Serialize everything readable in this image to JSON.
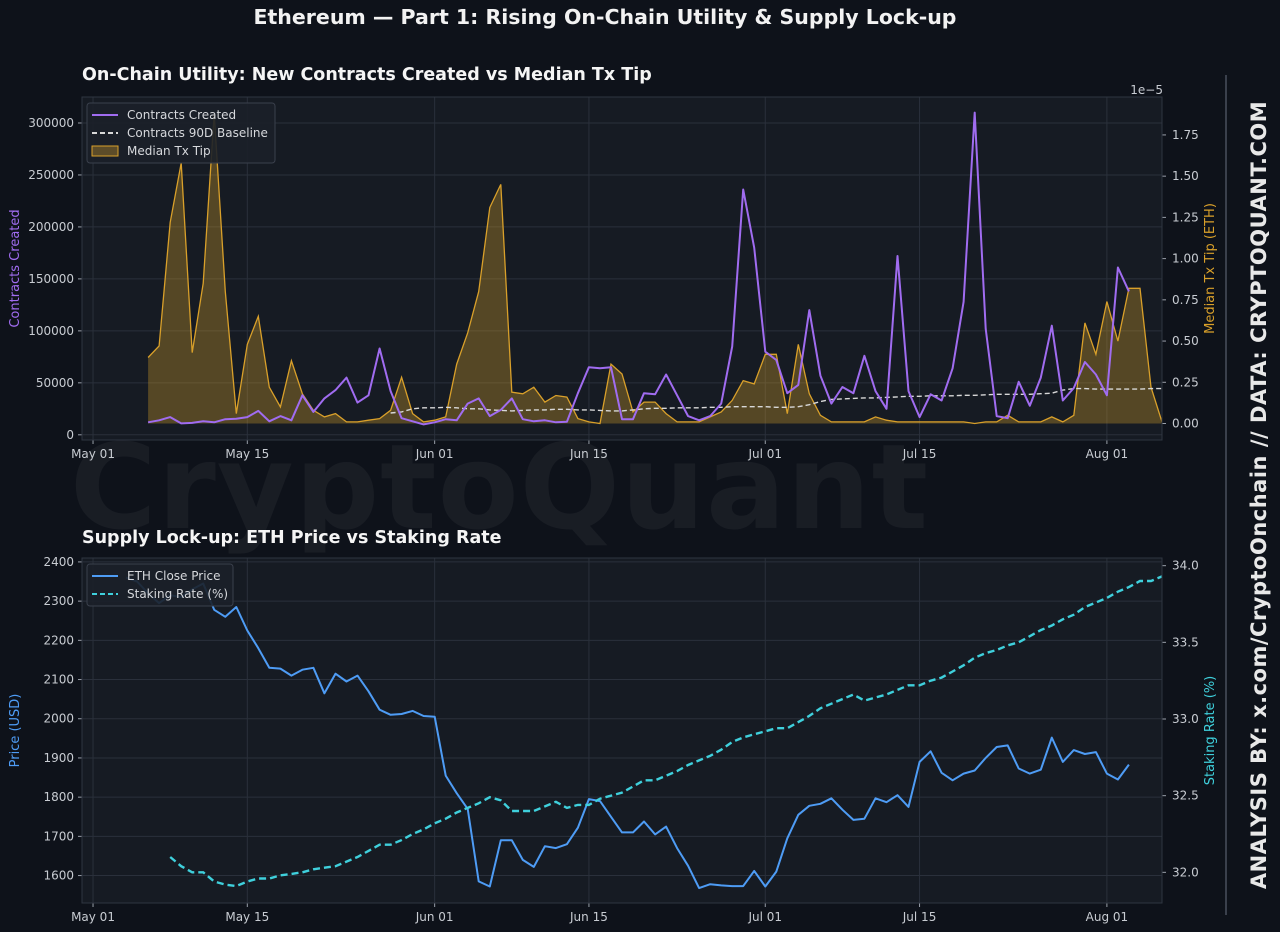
{
  "header": {
    "suptitle": "Ethereum — Part 1: Rising On-Chain Utility & Supply Lock-up",
    "watermark": "CryptoQuant",
    "side_credit": "ANALYSIS BY: x.com/CryptoOnchain   //   DATA: CRYPTOQUANT.COM"
  },
  "colors": {
    "background": "#0e121a",
    "plot_bg": "#161b23",
    "contracts": "#a06cf0",
    "baseline": "#d8d8d8",
    "tip": "#d9a02a",
    "price": "#4e9cf5",
    "staking": "#3fd0dc"
  },
  "chart_data": [
    {
      "type": "line",
      "title": "On-Chain Utility: New Contracts Created vs Median Tx Tip",
      "ylabel": "Contracts Created",
      "ylabel_right": "Median Tx Tip (ETH)",
      "right_axis_offset_label": "1e−5",
      "x_start": "2023-05-06",
      "x_tick_labels": [
        "May 01",
        "May 15",
        "Jun 01",
        "Jun 15",
        "Jul 01",
        "Jul 15",
        "Aug 01"
      ],
      "x_ticks": [
        "2023-05-01",
        "2023-05-15",
        "2023-06-01",
        "2023-06-15",
        "2023-07-01",
        "2023-07-15",
        "2023-08-01"
      ],
      "xlim": [
        "2023-04-30",
        "2023-08-06"
      ],
      "ylim": [
        -5000,
        325000
      ],
      "y_ticks": [
        0,
        50000,
        100000,
        150000,
        200000,
        250000,
        300000
      ],
      "ylim_right": [
        -0.1,
        1.98
      ],
      "y_ticks_right": [
        "0.00",
        "0.25",
        "0.50",
        "0.75",
        "1.00",
        "1.25",
        "1.50",
        "1.75"
      ],
      "legend": "top-left",
      "grid": true,
      "series": [
        {
          "name": "Contracts Created",
          "kind": "line",
          "axis": "left",
          "values": [
            12000,
            14000,
            17000,
            11000,
            11500,
            13000,
            12000,
            15000,
            15500,
            17000,
            23000,
            13000,
            18000,
            14000,
            38000,
            22000,
            35000,
            43000,
            55000,
            31000,
            38000,
            83000,
            42000,
            16000,
            13000,
            10000,
            12000,
            15000,
            14000,
            30000,
            35000,
            18000,
            24000,
            35000,
            15000,
            13000,
            14000,
            12000,
            12500,
            40000,
            65000,
            64000,
            65000,
            15000,
            15000,
            40000,
            39000,
            58000,
            38000,
            18000,
            14000,
            18000,
            30000,
            85000,
            236000,
            180000,
            80000,
            72000,
            40000,
            48000,
            120000,
            57000,
            30000,
            46000,
            40000,
            76000,
            42000,
            25000,
            172000,
            42000,
            17000,
            39000,
            33000,
            64000,
            128000,
            310000,
            102000,
            18000,
            16000,
            51000,
            28000,
            55000,
            105000,
            33000,
            45000,
            70000,
            58000,
            38000,
            161000,
            138000
          ]
        },
        {
          "name": "Contracts 90D Baseline",
          "kind": "dashed-line",
          "axis": "left",
          "start_index": 22,
          "values": [
            21000,
            22000,
            25000,
            26000,
            26000,
            26500,
            26000,
            25000,
            25000,
            24000,
            23500,
            23000,
            23500,
            24000,
            24000,
            24500,
            24500,
            24000,
            24000,
            23500,
            23000,
            23000,
            24000,
            25000,
            25500,
            25500,
            26000,
            26000,
            26000,
            26500,
            26500,
            27000,
            27000,
            27000,
            27000,
            26500,
            26500,
            27000,
            29000,
            32000,
            34000,
            34500,
            35000,
            35500,
            35500,
            36000,
            36500,
            37000,
            37000,
            37500,
            37500,
            37500,
            38000,
            38000,
            38500,
            39000,
            39000,
            39000,
            39000,
            39500,
            40000,
            43000,
            44500,
            44500,
            44000,
            44000,
            44000,
            44000,
            44000,
            44500,
            44500,
            44500,
            44500,
            45000,
            45000,
            45500,
            47000
          ]
        },
        {
          "name": "Median Tx Tip",
          "kind": "filled-area",
          "axis": "right",
          "values": [
            0.4,
            0.47,
            1.22,
            1.58,
            0.43,
            0.85,
            1.88,
            0.8,
            0.06,
            0.48,
            0.65,
            0.22,
            0.1,
            0.38,
            0.18,
            0.08,
            0.04,
            0.06,
            0.01,
            0.01,
            0.02,
            0.03,
            0.08,
            0.28,
            0.06,
            0.01,
            0.02,
            0.04,
            0.36,
            0.55,
            0.8,
            1.31,
            1.45,
            0.19,
            0.18,
            0.22,
            0.13,
            0.17,
            0.16,
            0.03,
            0.01,
            0.0,
            0.36,
            0.3,
            0.07,
            0.13,
            0.13,
            0.06,
            0.01,
            0.01,
            0.01,
            0.04,
            0.07,
            0.14,
            0.26,
            0.24,
            0.42,
            0.42,
            0.06,
            0.48,
            0.18,
            0.05,
            0.01,
            0.01,
            0.01,
            0.01,
            0.04,
            0.02,
            0.01,
            0.01,
            0.01,
            0.01,
            0.01,
            0.01,
            0.01,
            0.0,
            0.01,
            0.01,
            0.05,
            0.01,
            0.01,
            0.01,
            0.04,
            0.01,
            0.05,
            0.61,
            0.42,
            0.74,
            0.5,
            0.82,
            0.82,
            0.22,
            0.01
          ]
        }
      ]
    },
    {
      "type": "line",
      "title": "Supply Lock-up: ETH Price vs Staking Rate",
      "ylabel": "Price (USD)",
      "ylabel_right": "Staking Rate (%)",
      "x_start": "2023-05-04",
      "x_tick_labels": [
        "May 01",
        "May 15",
        "Jun 01",
        "Jun 15",
        "Jul 01",
        "Jul 15",
        "Aug 01"
      ],
      "x_ticks": [
        "2023-05-01",
        "2023-05-15",
        "2023-06-01",
        "2023-06-15",
        "2023-07-01",
        "2023-07-15",
        "2023-08-01"
      ],
      "xlim": [
        "2023-04-30",
        "2023-08-06"
      ],
      "ylim": [
        1530,
        2410
      ],
      "y_ticks": [
        1600,
        1700,
        1800,
        1900,
        2000,
        2100,
        2200,
        2300,
        2400
      ],
      "ylim_right": [
        31.8,
        34.05
      ],
      "y_ticks_right": [
        "32.0",
        "32.5",
        "33.0",
        "33.5",
        "34.0"
      ],
      "legend": "top-left",
      "grid": true,
      "series": [
        {
          "name": "ETH Close Price",
          "kind": "line",
          "axis": "left",
          "start_index": 0,
          "values": [
            2360,
            2350,
            2320,
            2295,
            2315,
            2310,
            2330,
            2345,
            2278,
            2260,
            2285,
            2225,
            2180,
            2130,
            2128,
            2110,
            2125,
            2130,
            2065,
            2115,
            2095,
            2110,
            2070,
            2023,
            2010,
            2012,
            2020,
            2007,
            2005,
            1855,
            1810,
            1770,
            1585,
            1572,
            1690,
            1690,
            1640,
            1622,
            1675,
            1670,
            1680,
            1722,
            1795,
            1790,
            1750,
            1710,
            1710,
            1738,
            1705,
            1725,
            1670,
            1625,
            1568,
            1578,
            1575,
            1573,
            1573,
            1612,
            1572,
            1610,
            1695,
            1755,
            1778,
            1783,
            1797,
            1768,
            1742,
            1745,
            1797,
            1787,
            1805,
            1775,
            1890,
            1917,
            1862,
            1843,
            1860,
            1868,
            1900,
            1928,
            1932,
            1873,
            1860,
            1870,
            1952,
            1890,
            1920,
            1910,
            1915,
            1860,
            1845,
            1883
          ]
        },
        {
          "name": "Staking Rate (%)",
          "kind": "dashed-line",
          "axis": "right",
          "start_index": 4,
          "values": [
            32.1,
            32.04,
            32.0,
            32.0,
            31.94,
            31.92,
            31.91,
            31.94,
            31.96,
            31.96,
            31.98,
            31.99,
            32.0,
            32.02,
            32.03,
            32.04,
            32.07,
            32.1,
            32.14,
            32.18,
            32.18,
            32.21,
            32.25,
            32.28,
            32.32,
            32.35,
            32.39,
            32.42,
            32.45,
            32.49,
            32.47,
            32.4,
            32.4,
            32.4,
            32.43,
            32.46,
            32.42,
            32.44,
            32.44,
            32.48,
            32.5,
            32.52,
            32.56,
            32.6,
            32.6,
            32.63,
            32.66,
            32.7,
            32.73,
            32.76,
            32.8,
            32.85,
            32.88,
            32.9,
            32.92,
            32.94,
            32.94,
            32.98,
            33.02,
            33.07,
            33.1,
            33.13,
            33.16,
            33.12,
            33.14,
            33.16,
            33.19,
            33.22,
            33.22,
            33.25,
            33.27,
            33.31,
            33.35,
            33.4,
            33.43,
            33.45,
            33.48,
            33.5,
            33.54,
            33.58,
            33.61,
            33.65,
            33.68,
            33.73,
            33.76,
            33.79,
            33.83,
            33.86,
            33.9,
            33.9,
            33.93,
            33.96
          ]
        }
      ]
    }
  ]
}
